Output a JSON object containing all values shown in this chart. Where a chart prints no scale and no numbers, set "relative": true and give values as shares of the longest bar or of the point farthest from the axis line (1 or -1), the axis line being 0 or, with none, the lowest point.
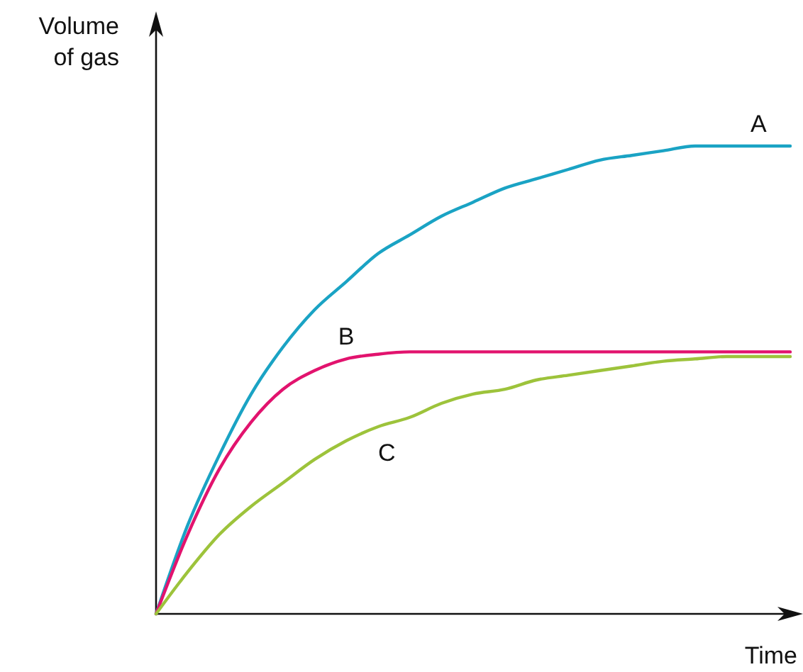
{
  "chart_data": {
    "type": "line",
    "relative": true,
    "xlabel": "Time",
    "ylabel": "Volume\nof gas",
    "categories": [
      null,
      null,
      null,
      null,
      null,
      null,
      null,
      null,
      null,
      null,
      null,
      null,
      null,
      null,
      null,
      null,
      null,
      null,
      null,
      null,
      null
    ],
    "series": [
      {
        "name": "A",
        "color": "#1aa3c4",
        "values": [
          0,
          0.19,
          0.34,
          0.47,
          0.57,
          0.65,
          0.71,
          0.77,
          0.81,
          0.85,
          0.88,
          0.91,
          0.93,
          0.95,
          0.97,
          0.98,
          0.99,
          1,
          1,
          1,
          1
        ]
      },
      {
        "name": "B",
        "color": "#e2136e",
        "values": [
          0,
          0.17,
          0.31,
          0.41,
          0.48,
          0.52,
          0.545,
          0.555,
          0.56,
          0.56,
          0.56,
          0.56,
          0.56,
          0.56,
          0.56,
          0.56,
          0.56,
          0.56,
          0.56,
          0.56,
          0.56
        ]
      },
      {
        "name": "C",
        "color": "#9dc33b",
        "values": [
          0,
          0.09,
          0.17,
          0.23,
          0.28,
          0.33,
          0.37,
          0.4,
          0.42,
          0.45,
          0.47,
          0.48,
          0.5,
          0.51,
          0.52,
          0.53,
          0.54,
          0.545,
          0.55,
          0.55,
          0.55
        ]
      }
    ]
  }
}
